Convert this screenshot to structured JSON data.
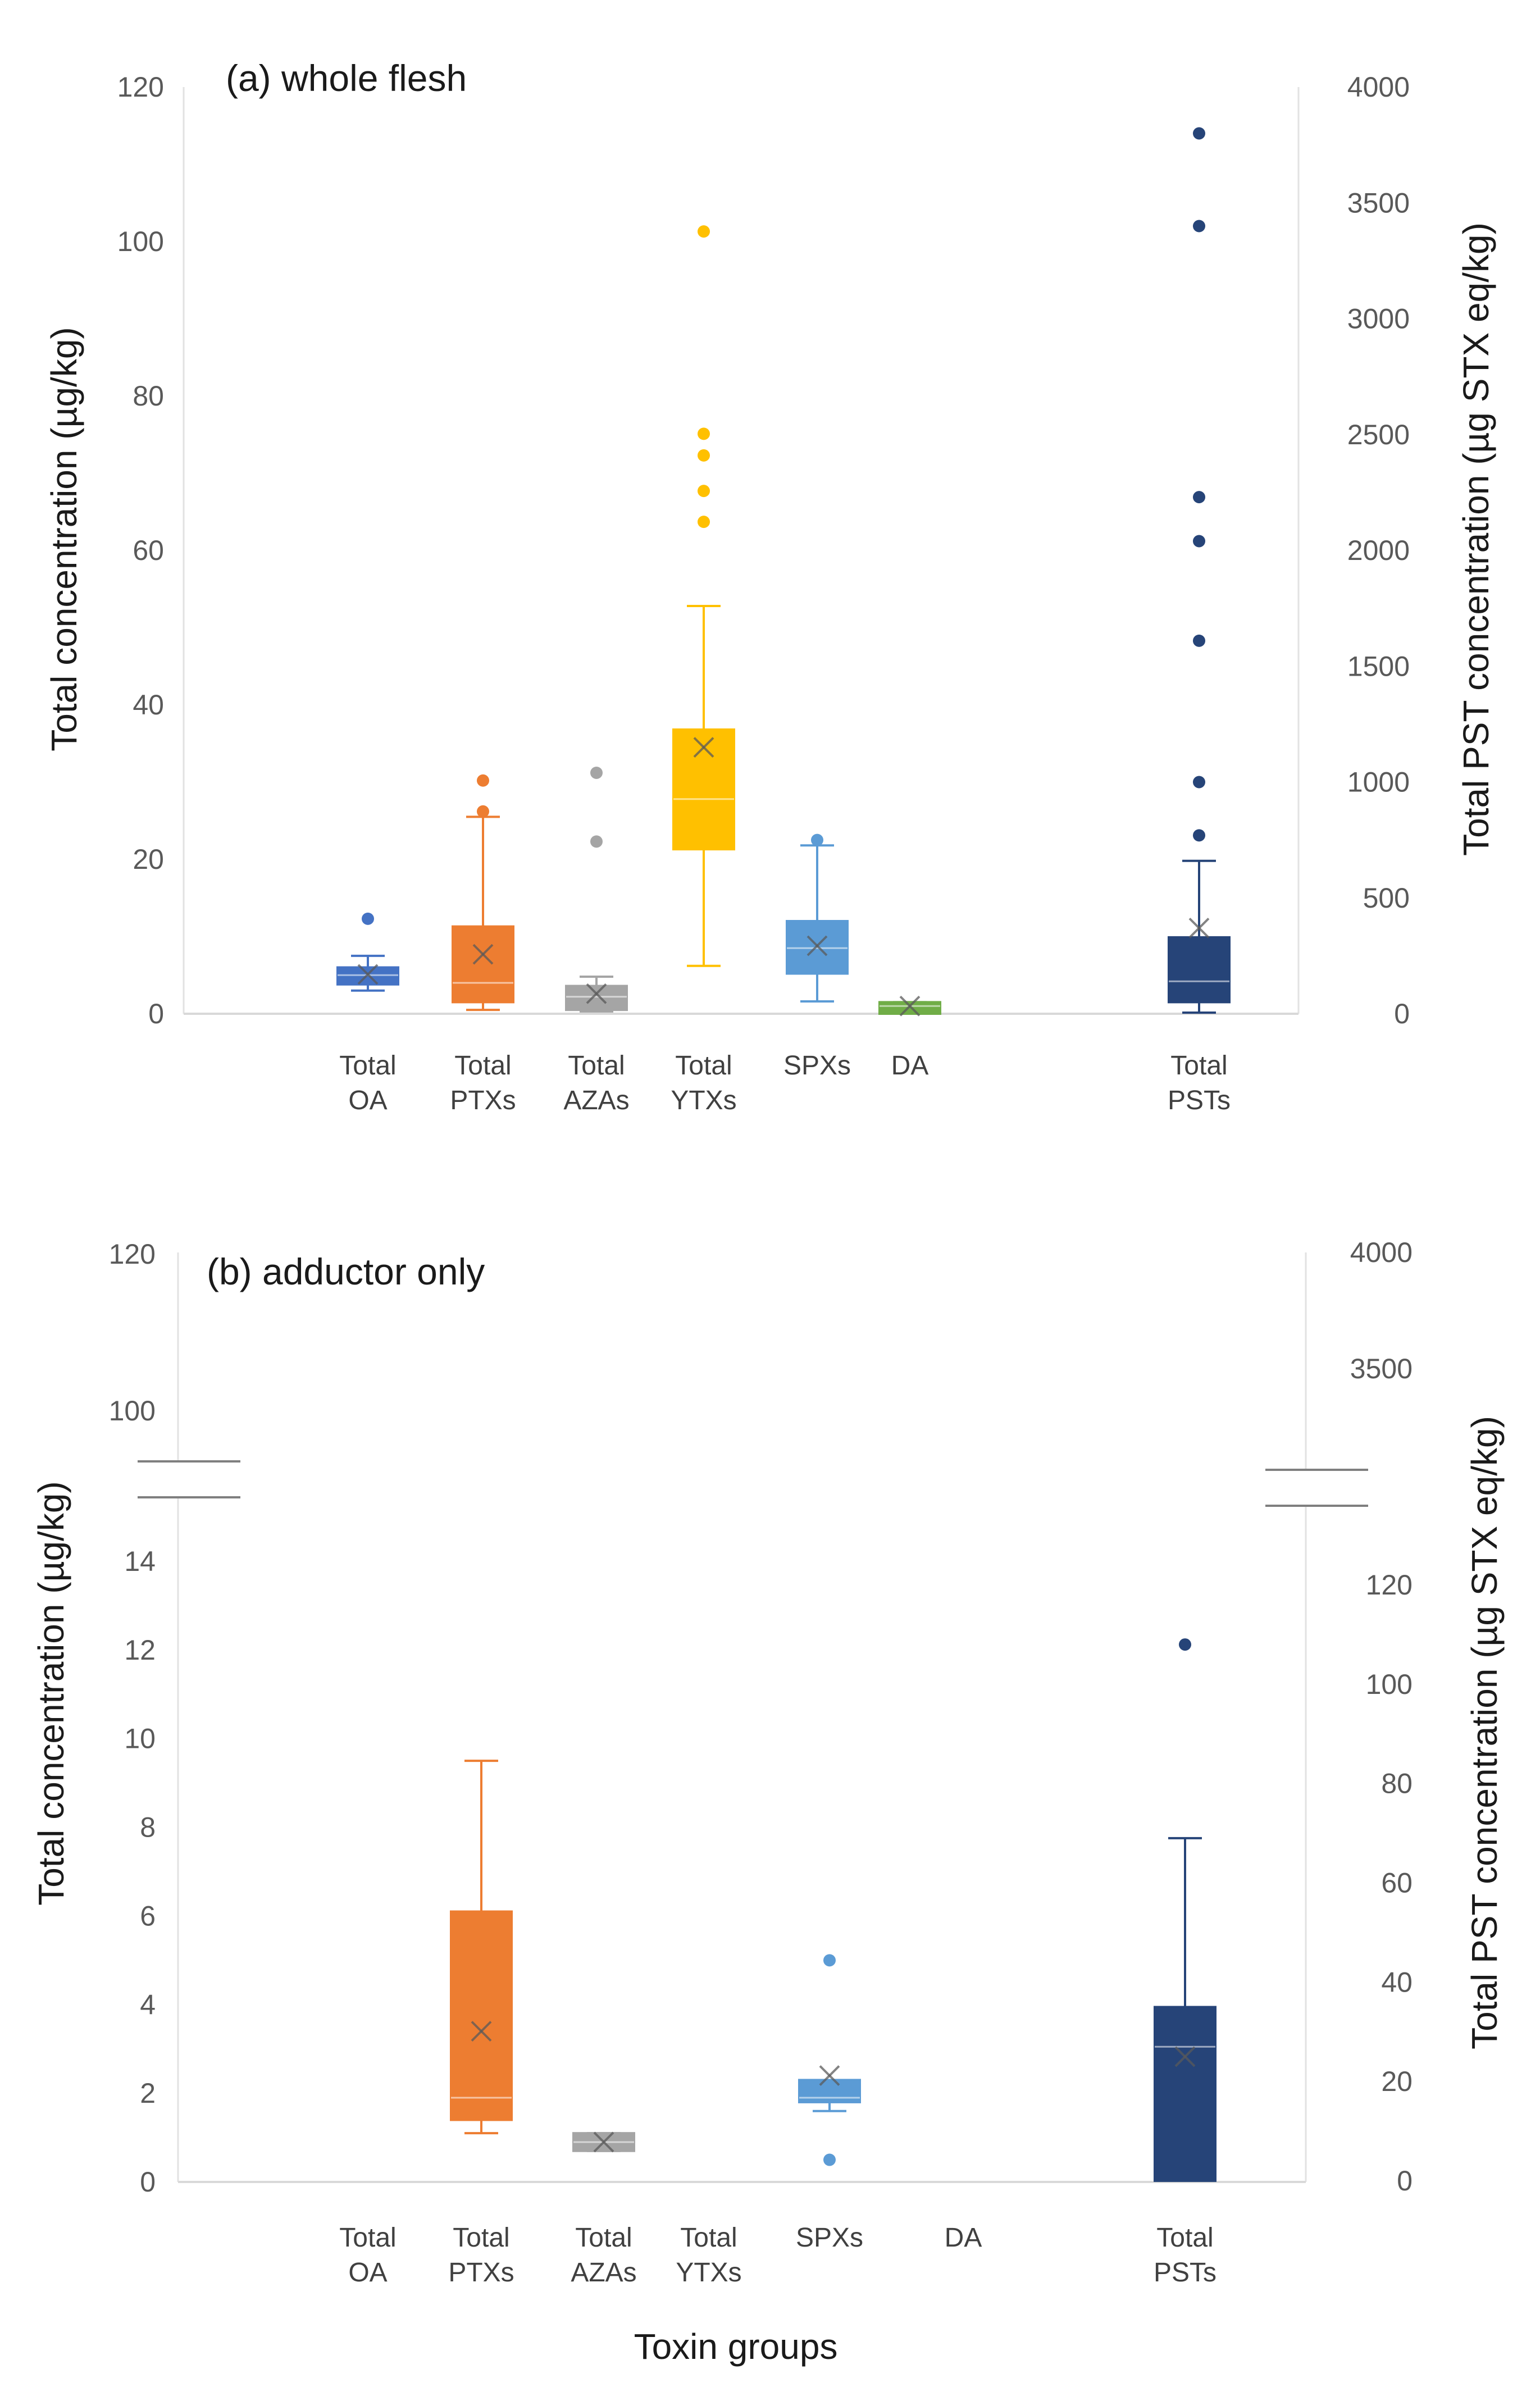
{
  "figure": {
    "xlabel": "Toxin groups"
  },
  "chart_data": [
    {
      "type": "box",
      "title": "(a) whole flesh",
      "ylabel": "Total concentration (µg/kg)",
      "y2label": "Total PST concentration (µg STX eq/kg)",
      "ylim": [
        0,
        120
      ],
      "y2lim": [
        0,
        4000
      ],
      "yticks": [
        0,
        20,
        40,
        60,
        80,
        100,
        120
      ],
      "y2ticks": [
        0,
        500,
        1000,
        1500,
        2000,
        2500,
        3000,
        3500,
        4000
      ],
      "categories": [
        {
          "label": [
            "Total",
            "OA"
          ],
          "color": "#4472C4",
          "axis": "left",
          "min": 3,
          "q1": 3.8,
          "median": 5,
          "q3": 6,
          "max": 7.5,
          "mean": 5.1,
          "outliers": [
            12.3
          ]
        },
        {
          "label": [
            "Total",
            "PTXs"
          ],
          "color": "#ED7D31",
          "axis": "left",
          "min": 0.5,
          "q1": 1.5,
          "median": 4,
          "q3": 11.3,
          "max": 25.5,
          "mean": 7.7,
          "outliers": [
            26.2,
            30.2
          ]
        },
        {
          "label": [
            "Total",
            "AZAs"
          ],
          "color": "#A5A5A5",
          "axis": "left",
          "min": 0.3,
          "q1": 0.5,
          "median": 2.2,
          "q3": 3.6,
          "max": 4.8,
          "mean": 2.6,
          "outliers": [
            22.3,
            31.2
          ]
        },
        {
          "label": [
            "Total",
            "YTXs"
          ],
          "color": "#FFC000",
          "axis": "left",
          "min": 6.2,
          "q1": 21.3,
          "median": 27.8,
          "q3": 36.8,
          "max": 52.8,
          "mean": 34.5,
          "outliers": [
            63.7,
            67.7,
            72.3,
            75.1,
            101.3
          ]
        },
        {
          "label": [
            "SPXs"
          ],
          "color": "#5B9BD5",
          "axis": "left",
          "min": 1.6,
          "q1": 5.2,
          "median": 8.5,
          "q3": 12,
          "max": 21.8,
          "mean": 8.8,
          "outliers": [
            22.5
          ]
        },
        {
          "label": [
            "DA"
          ],
          "color": "#70AD47",
          "axis": "left",
          "min": 0,
          "q1": 0,
          "median": 1,
          "q3": 1.5,
          "max": 1.5,
          "mean": 1,
          "outliers": []
        },
        {
          "label": [
            "Total",
            "PSTs"
          ],
          "color": "#264478",
          "axis": "right",
          "min": 5,
          "q1": 50,
          "median": 140,
          "q3": 330,
          "max": 660,
          "mean": 370,
          "outliers": [
            770,
            1000,
            1610,
            2040,
            2230,
            3400,
            3800
          ]
        }
      ]
    },
    {
      "type": "box",
      "title": "(b) adductor only",
      "ylabel": "Total concentration (µg/kg)",
      "y2label": "Total PST concentration (µg STX eq/kg)",
      "ylim": [
        0,
        120
      ],
      "ybreak": [
        15,
        100
      ],
      "y2lim": [
        0,
        4000
      ],
      "y2break": [
        130,
        3000
      ],
      "yticks": [
        0,
        2,
        4,
        6,
        8,
        10,
        12,
        14,
        100,
        120
      ],
      "y2ticks": [
        0,
        20,
        40,
        60,
        80,
        100,
        120,
        3500,
        4000
      ],
      "categories": [
        {
          "label": [
            "Total",
            "OA"
          ],
          "color": "#4472C4",
          "axis": "left",
          "empty": true
        },
        {
          "label": [
            "Total",
            "PTXs"
          ],
          "color": "#ED7D31",
          "axis": "left",
          "min": 1.1,
          "q1": 1.4,
          "median": 1.9,
          "q3": 6.1,
          "max": 9.5,
          "mean": 3.4,
          "outliers": []
        },
        {
          "label": [
            "Total",
            "AZAs"
          ],
          "color": "#A5A5A5",
          "axis": "left",
          "min": 0.7,
          "q1": 0.7,
          "median": 0.9,
          "q3": 1.1,
          "max": 1.1,
          "mean": 0.9,
          "outliers": []
        },
        {
          "label": [
            "Total",
            "YTXs"
          ],
          "color": "#FFC000",
          "axis": "left",
          "empty": true
        },
        {
          "label": [
            "SPXs"
          ],
          "color": "#5B9BD5",
          "axis": "left",
          "min": 1.6,
          "q1": 1.8,
          "median": 1.9,
          "q3": 2.3,
          "max": 2.3,
          "mean": 2.4,
          "outliers": [
            0.5,
            5
          ]
        },
        {
          "label": [
            "DA"
          ],
          "color": "#70AD47",
          "axis": "left",
          "empty": true
        },
        {
          "label": [
            "Total",
            "PSTs"
          ],
          "color": "#264478",
          "axis": "right",
          "min": 0,
          "q1": 0,
          "median": 27,
          "q3": 35,
          "max": 69,
          "mean": 25,
          "outliers": [
            108
          ]
        }
      ]
    }
  ]
}
